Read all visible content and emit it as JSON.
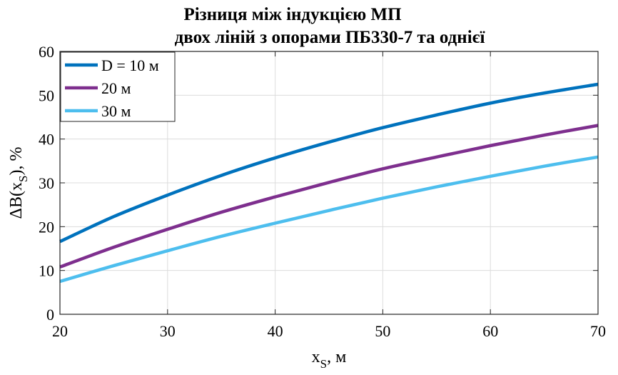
{
  "chart_data": {
    "type": "line",
    "title_lines": [
      "Різниця між індукцією МП",
      "двох ліній з опорами ПБ330-7 та однієї"
    ],
    "xlabel": {
      "main": "x",
      "sub": "S",
      "suffix": ", м"
    },
    "ylabel": {
      "prefix": "ΔB(x",
      "sub": "S",
      "suffix": "), %"
    },
    "xlim": [
      20,
      70
    ],
    "ylim": [
      0,
      60
    ],
    "xticks": [
      "20",
      "30",
      "40",
      "50",
      "60",
      "70"
    ],
    "yticks": [
      "0",
      "10",
      "20",
      "30",
      "40",
      "50",
      "60"
    ],
    "grid": true,
    "legend_position": "top-left",
    "series": [
      {
        "name": "D = 10 м",
        "color": "#0072BD",
        "x": [
          20,
          25,
          30,
          35,
          40,
          45,
          50,
          55,
          60,
          65,
          70
        ],
        "y": [
          16.6,
          22.3,
          27.2,
          31.7,
          35.7,
          39.3,
          42.6,
          45.5,
          48.2,
          50.5,
          52.5
        ]
      },
      {
        "name": "20 м",
        "color": "#7E2F8E",
        "x": [
          20,
          25,
          30,
          35,
          40,
          45,
          50,
          55,
          60,
          65,
          70
        ],
        "y": [
          10.8,
          15.3,
          19.4,
          23.3,
          26.8,
          30.1,
          33.2,
          35.9,
          38.5,
          40.9,
          43.1
        ]
      },
      {
        "name": "30 м",
        "color": "#4DBEEE",
        "x": [
          20,
          25,
          30,
          35,
          40,
          45,
          50,
          55,
          60,
          65,
          70
        ],
        "y": [
          7.5,
          11.1,
          14.5,
          17.8,
          20.8,
          23.7,
          26.5,
          29.1,
          31.5,
          33.8,
          35.9
        ]
      }
    ]
  }
}
